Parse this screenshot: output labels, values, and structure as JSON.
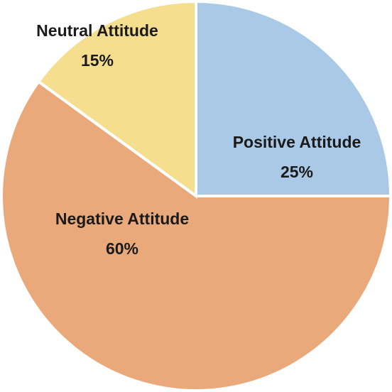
{
  "chart_data": {
    "type": "pie",
    "categories": [
      "Positive Attitude",
      "Negative Attitude",
      "Neutral Attitude"
    ],
    "values": [
      25,
      60,
      15
    ],
    "value_labels": [
      "25%",
      "60%",
      "15%"
    ],
    "colors": [
      "#a9c9e6",
      "#eaa97b",
      "#f5df8f"
    ]
  }
}
